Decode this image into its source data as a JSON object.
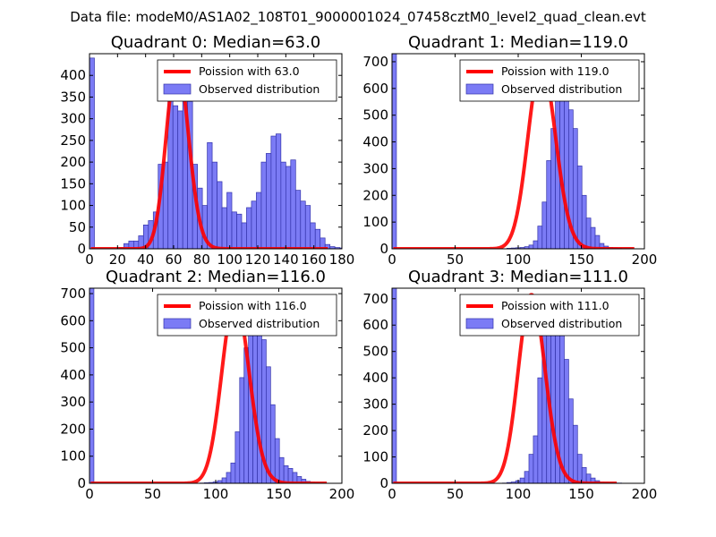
{
  "suptitle": "Data file: modeM0/AS1A02_108T01_9000001024_07458cztM0_level2_quad_clean.evt",
  "colors": {
    "hist_fill": "#7b7bf5",
    "hist_edge": "#3333aa",
    "curve": "#ff0000"
  },
  "chart_data": [
    {
      "type": "bar",
      "title": "Quadrant 0: Median=63.0",
      "xlim": [
        0,
        180
      ],
      "ylim": [
        0,
        450
      ],
      "xticks": [
        0,
        20,
        40,
        60,
        80,
        100,
        120,
        140,
        160,
        180
      ],
      "yticks": [
        0,
        50,
        100,
        150,
        200,
        250,
        300,
        350,
        400
      ],
      "bin_width": 3.5,
      "hist_start": 0,
      "hist_values": [
        440,
        0,
        0,
        0,
        0,
        0,
        3,
        12,
        18,
        18,
        30,
        55,
        65,
        85,
        195,
        200,
        375,
        330,
        318,
        350,
        340,
        195,
        140,
        100,
        245,
        200,
        155,
        95,
        130,
        85,
        80,
        60,
        95,
        110,
        130,
        200,
        220,
        260,
        265,
        200,
        190,
        205,
        135,
        110,
        100,
        60,
        45,
        25,
        10,
        5,
        3,
        2
      ],
      "legend": [
        "Poission with 63.0",
        "Observed distribution"
      ],
      "poisson_lambda": 63.0,
      "poisson_peak": 432,
      "poisson_range": [
        0,
        170
      ]
    },
    {
      "type": "bar",
      "title": "Quadrant 1: Median=119.0",
      "xlim": [
        0,
        200
      ],
      "ylim": [
        0,
        730
      ],
      "xticks": [
        0,
        50,
        100,
        150,
        200
      ],
      "yticks": [
        0,
        100,
        200,
        300,
        400,
        500,
        600,
        700
      ],
      "bin_width": 3.5,
      "hist_start": 0,
      "hist_values": [
        730,
        0,
        0,
        0,
        0,
        0,
        0,
        0,
        0,
        0,
        0,
        0,
        0,
        0,
        0,
        0,
        0,
        0,
        0,
        0,
        0,
        0,
        0,
        0,
        0,
        0,
        2,
        3,
        4,
        5,
        8,
        14,
        30,
        85,
        175,
        330,
        450,
        560,
        660,
        620,
        520,
        450,
        310,
        200,
        115,
        80,
        50,
        20,
        10,
        5,
        3,
        2,
        1,
        1
      ],
      "legend": [
        "Poission with 119.0",
        "Observed distribution"
      ],
      "poisson_lambda": 119.0,
      "poisson_peak": 693,
      "poisson_range": [
        0,
        192
      ]
    },
    {
      "type": "bar",
      "title": "Quadrant 2: Median=116.0",
      "xlim": [
        0,
        200
      ],
      "ylim": [
        0,
        720
      ],
      "xticks": [
        0,
        50,
        100,
        150,
        200
      ],
      "yticks": [
        0,
        100,
        200,
        300,
        400,
        500,
        600,
        700
      ],
      "bin_width": 3.5,
      "hist_start": 0,
      "hist_values": [
        720,
        0,
        0,
        0,
        0,
        0,
        0,
        0,
        0,
        0,
        0,
        0,
        0,
        0,
        0,
        0,
        0,
        0,
        0,
        0,
        0,
        0,
        0,
        0,
        0,
        1,
        2,
        3,
        5,
        10,
        20,
        40,
        75,
        190,
        390,
        500,
        640,
        560,
        620,
        530,
        430,
        290,
        165,
        95,
        65,
        55,
        40,
        25,
        15,
        7,
        4,
        2,
        1
      ],
      "legend": [
        "Poission with 116.0",
        "Observed distribution"
      ],
      "poisson_lambda": 116.0,
      "poisson_peak": 680,
      "poisson_range": [
        0,
        188
      ]
    },
    {
      "type": "bar",
      "title": "Quadrant 3: Median=111.0",
      "xlim": [
        0,
        200
      ],
      "ylim": [
        0,
        740
      ],
      "xticks": [
        0,
        50,
        100,
        150,
        200
      ],
      "yticks": [
        0,
        100,
        200,
        300,
        400,
        500,
        600,
        700
      ],
      "bin_width": 3.5,
      "hist_start": 0,
      "hist_values": [
        740,
        0,
        0,
        0,
        0,
        0,
        0,
        0,
        0,
        0,
        0,
        0,
        0,
        0,
        0,
        0,
        0,
        0,
        0,
        0,
        0,
        0,
        0,
        0,
        0,
        1,
        3,
        5,
        10,
        20,
        45,
        110,
        180,
        400,
        600,
        700,
        640,
        660,
        620,
        470,
        320,
        220,
        110,
        60,
        35,
        20,
        10,
        5,
        3,
        2,
        1,
        1
      ],
      "legend": [
        "Poission with 111.0",
        "Observed distribution"
      ],
      "poisson_lambda": 111.0,
      "poisson_peak": 715,
      "poisson_range": [
        0,
        178
      ]
    }
  ]
}
